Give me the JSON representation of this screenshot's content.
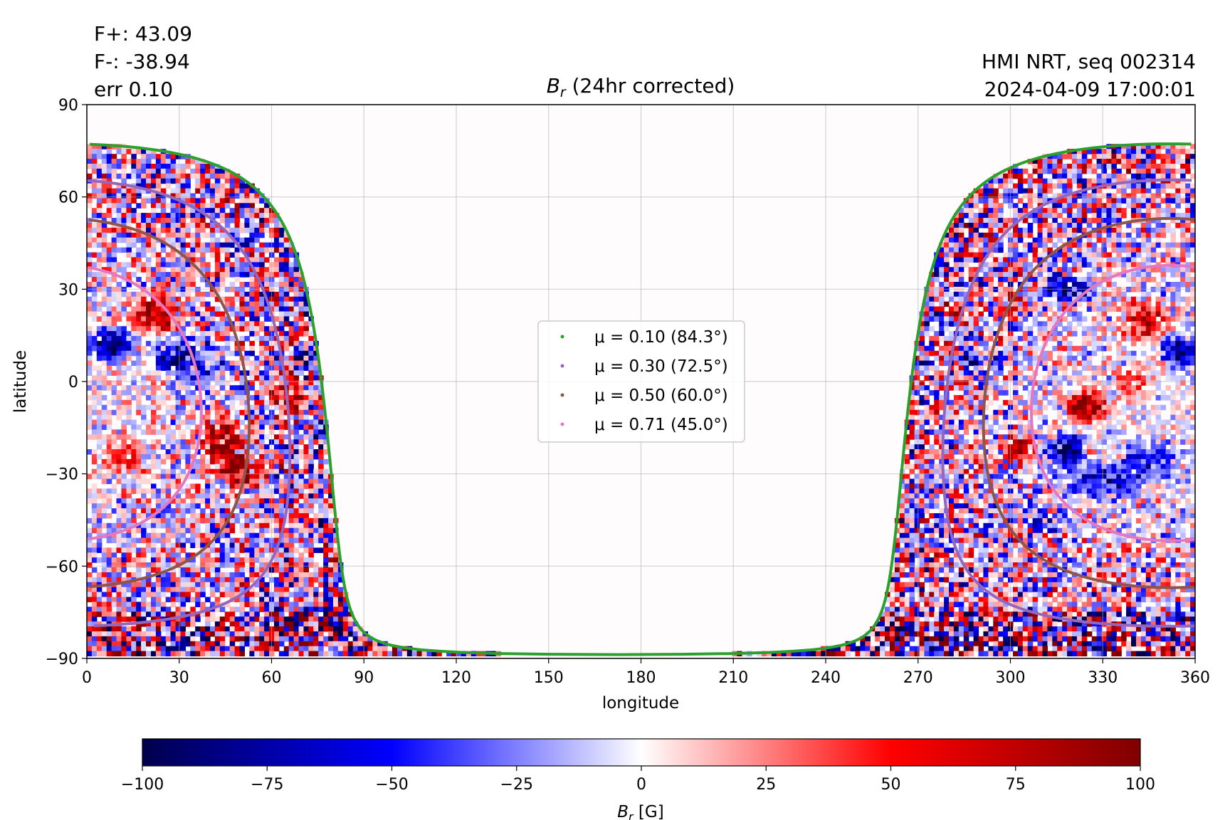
{
  "annotations": {
    "fplus": "F+: 43.09",
    "fminus": "F-: -38.94",
    "err": "err 0.10",
    "instrument": "HMI NRT, seq 002314",
    "datetime": "2024-04-09 17:00:01"
  },
  "chart_data": {
    "type": "heatmap",
    "title": "B_r (24hr corrected)",
    "xlabel": "longitude",
    "ylabel": "latitude",
    "xlim": [
      0,
      360
    ],
    "ylim": [
      -90,
      90
    ],
    "xticks": [
      0,
      30,
      60,
      90,
      120,
      150,
      180,
      210,
      240,
      270,
      300,
      330,
      360
    ],
    "yticks": [
      -90,
      -60,
      -30,
      0,
      30,
      60,
      90
    ],
    "grid": true,
    "legend_position": "center",
    "observer_center": {
      "lon": 352,
      "lat": -7
    },
    "series": [
      {
        "name": "μ = 0.10 (84.3°)",
        "mu": 0.1,
        "angle_deg": 84.3,
        "color": "#2ca02c"
      },
      {
        "name": "μ = 0.30 (72.5°)",
        "mu": 0.3,
        "angle_deg": 72.5,
        "color": "#9467bd"
      },
      {
        "name": "μ = 0.50 (60.0°)",
        "mu": 0.5,
        "angle_deg": 60.0,
        "color": "#8c564b"
      },
      {
        "name": "μ = 0.71 (45.0°)",
        "mu": 0.71,
        "angle_deg": 45.0,
        "color": "#e377c2"
      }
    ],
    "colorbar": {
      "label": "B_r [G]",
      "min": -100,
      "max": 100,
      "ticks": [
        -100,
        -75,
        -50,
        -25,
        0,
        25,
        50,
        75,
        100
      ],
      "colormap": "seismic"
    }
  }
}
